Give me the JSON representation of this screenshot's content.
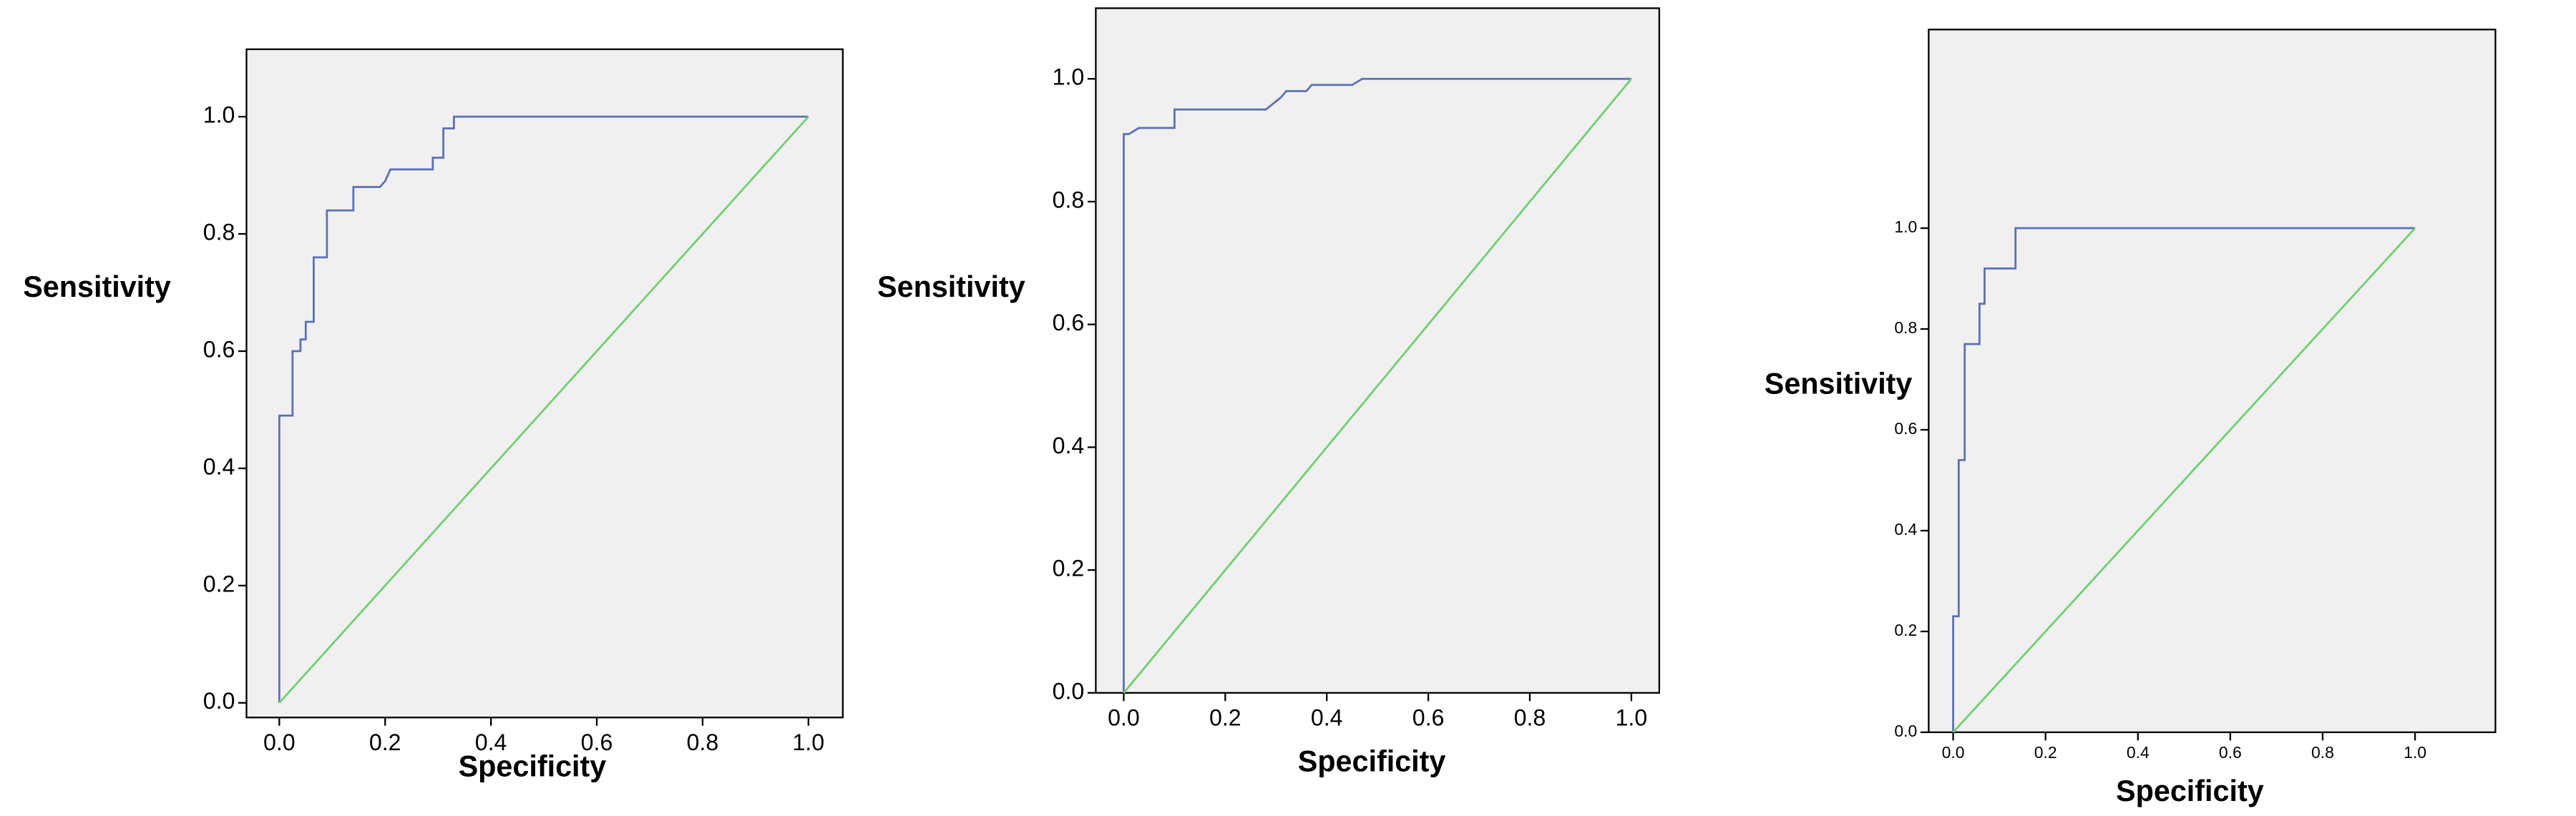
{
  "chart_data": [
    {
      "type": "line",
      "x_label": "Specificity",
      "y_label": "Sensitivity",
      "xlim": [
        -0.062,
        1.065
      ],
      "ylim": [
        -0.025,
        1.115
      ],
      "xticks": [
        {
          "value": 0,
          "label": "0.0"
        },
        0.2,
        0.4,
        0.6,
        0.8,
        {
          "value": 1,
          "label": "1.0"
        }
      ],
      "yticks": [
        {
          "value": 0,
          "label": "0.0"
        },
        0.2,
        0.4,
        0.6,
        0.8,
        {
          "value": 1,
          "label": "1.0"
        }
      ],
      "background": "#f0f0f0",
      "series": [
        {
          "color": "#5b6fb5",
          "x": [
            0,
            0,
            0.025,
            0.025,
            0.04,
            0.04,
            0.05,
            0.05,
            0.065,
            0.065,
            0.09,
            0.09,
            0.14,
            0.14,
            0.19,
            0.2,
            0.21,
            0.29,
            0.29,
            0.31,
            0.31,
            0.33,
            0.33,
            1
          ],
          "values": [
            0,
            0.49,
            0.49,
            0.6,
            0.6,
            0.62,
            0.62,
            0.65,
            0.65,
            0.76,
            0.76,
            0.84,
            0.84,
            0.88,
            0.88,
            0.89,
            0.91,
            0.91,
            0.93,
            0.93,
            0.98,
            0.98,
            1,
            1
          ]
        },
        {
          "color": "#6fcf6f",
          "x": [
            0,
            1
          ],
          "values": [
            0,
            1
          ]
        }
      ]
    },
    {
      "type": "line",
      "x_label": "Specificity",
      "y_label": "Sensitivity",
      "xlim": [
        -0.055,
        1.055
      ],
      "ylim": [
        0,
        1.115
      ],
      "xticks": [
        {
          "value": 0,
          "label": "0.0"
        },
        0.2,
        0.4,
        0.6,
        0.8,
        {
          "value": 1,
          "label": "1.0"
        }
      ],
      "yticks": [
        {
          "value": 0,
          "label": "0.0"
        },
        0.2,
        0.4,
        0.6,
        0.8,
        {
          "value": 1,
          "label": "1.0"
        }
      ],
      "background": "#f0f0f0",
      "series": [
        {
          "color": "#5b6fb5",
          "x": [
            0,
            0,
            0.01,
            0.03,
            0.1,
            0.1,
            0.28,
            0.31,
            0.32,
            0.36,
            0.37,
            0.45,
            0.47,
            1
          ],
          "values": [
            0,
            0.91,
            0.91,
            0.92,
            0.92,
            0.95,
            0.95,
            0.97,
            0.98,
            0.98,
            0.99,
            0.99,
            1,
            1
          ]
        },
        {
          "color": "#6fcf6f",
          "x": [
            0,
            1
          ],
          "values": [
            0,
            1
          ]
        }
      ]
    },
    {
      "type": "line",
      "x_label": "Specificity",
      "y_label": "Sensitivity",
      "xlim": [
        -0.053,
        1.174
      ],
      "ylim": [
        0,
        1.394
      ],
      "xticks": [
        {
          "value": 0,
          "label": "0.0"
        },
        0.2,
        0.4,
        0.6,
        0.8,
        {
          "value": 1,
          "label": "1.0"
        }
      ],
      "yticks": [
        {
          "value": 0,
          "label": "0.0"
        },
        0.2,
        0.4,
        0.6,
        0.8,
        {
          "value": 1,
          "label": "1.0"
        }
      ],
      "background": "#f0f0f0",
      "series": [
        {
          "color": "#5b6fb5",
          "x": [
            0,
            0,
            0.012,
            0.012,
            0.025,
            0.025,
            0.057,
            0.057,
            0.068,
            0.068,
            0.135,
            0.135,
            1
          ],
          "values": [
            0,
            0.23,
            0.23,
            0.54,
            0.54,
            0.77,
            0.77,
            0.85,
            0.85,
            0.92,
            0.92,
            1,
            1
          ]
        },
        {
          "color": "#6fcf6f",
          "x": [
            0,
            1
          ],
          "values": [
            0,
            1
          ]
        }
      ]
    }
  ]
}
